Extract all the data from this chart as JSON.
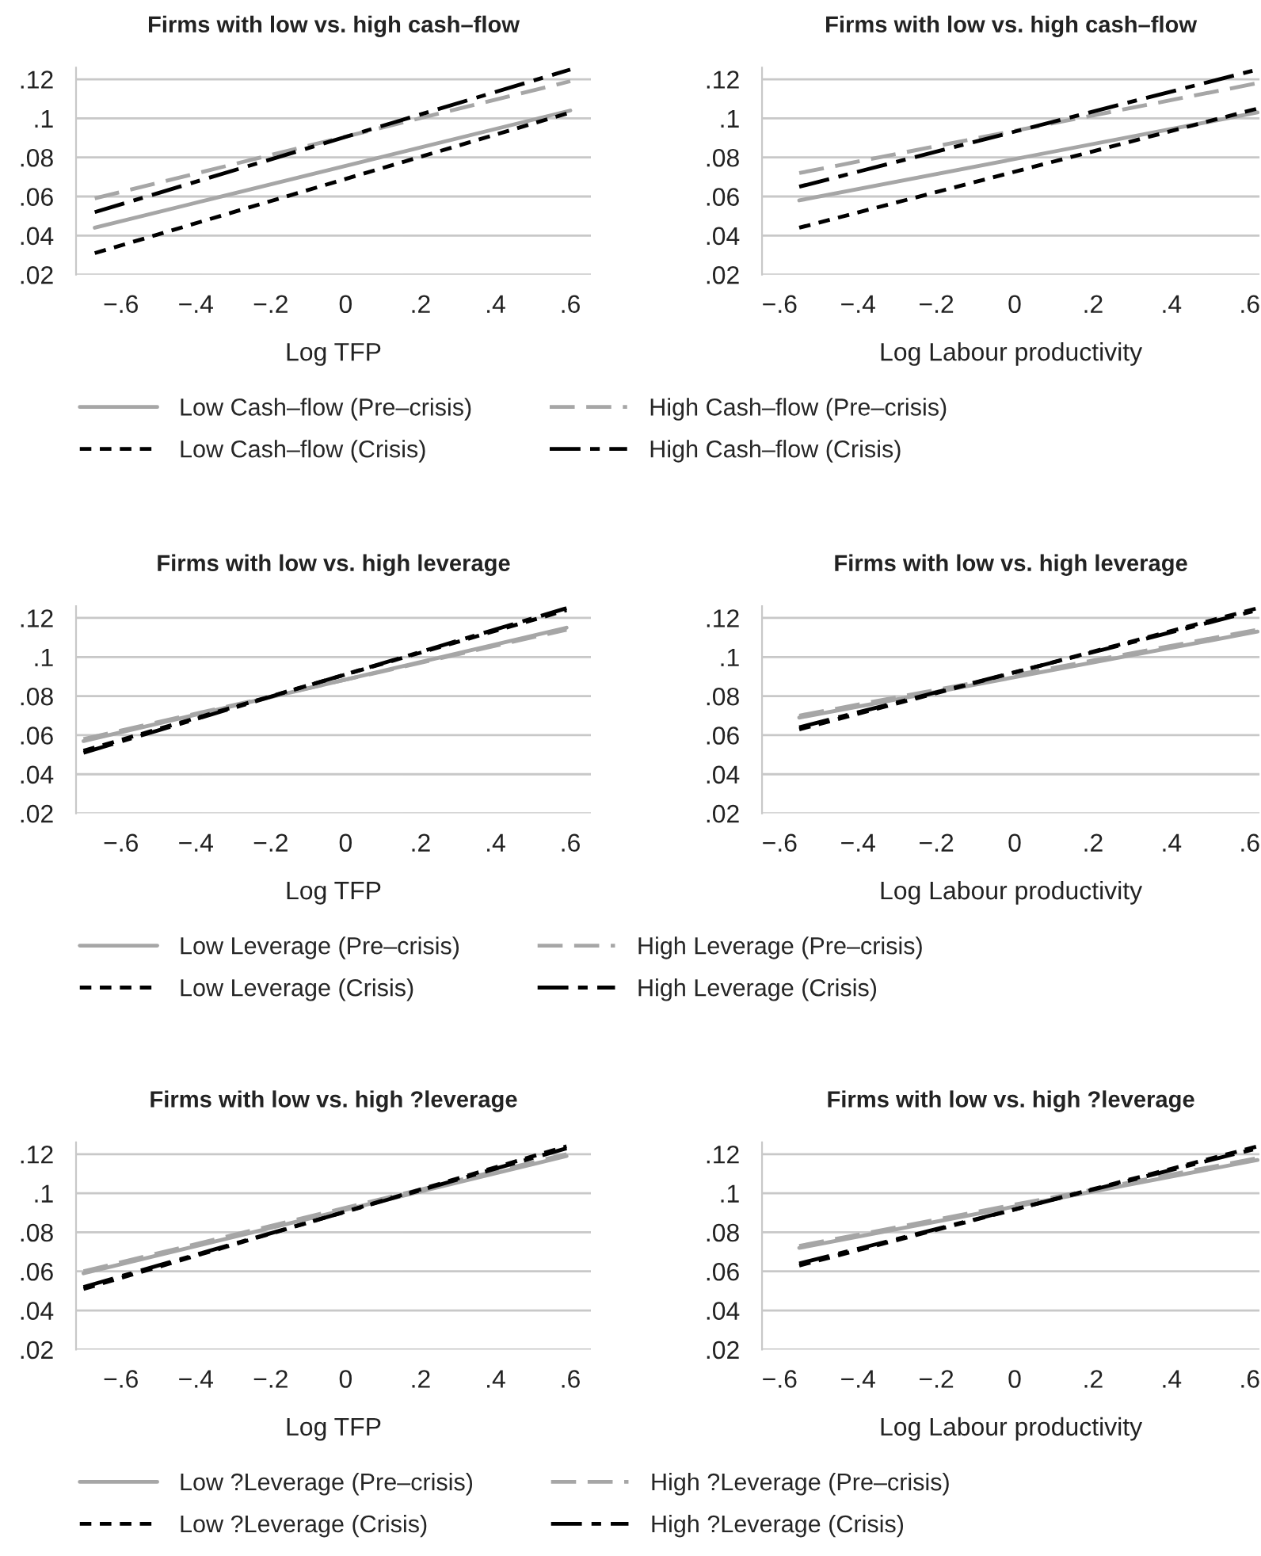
{
  "chart_data": [
    {
      "type": "line",
      "title": "Firms with low vs. high cash–flow",
      "xlabel": "Log TFP",
      "x": [
        -0.67,
        0.6
      ],
      "xlim": [
        -0.72,
        0.655
      ],
      "ylim": [
        0.02,
        0.126
      ],
      "xticks": [
        {
          "value": -0.6,
          "label": "−.6"
        },
        {
          "value": -0.4,
          "label": "−.4"
        },
        {
          "value": -0.2,
          "label": "−.2"
        },
        0,
        {
          "value": 0.2,
          "label": ".2"
        },
        {
          "value": 0.4,
          "label": ".4"
        },
        {
          "value": 0.6,
          "label": ".6"
        }
      ],
      "yticks": [
        {
          "value": 0.02,
          "label": ".02"
        },
        {
          "value": 0.04,
          "label": ".04"
        },
        {
          "value": 0.06,
          "label": ".06"
        },
        {
          "value": 0.08,
          "label": ".08"
        },
        {
          "value": 0.1,
          "label": ".1"
        },
        {
          "value": 0.12,
          "label": ".12"
        }
      ],
      "grid": "y",
      "legend": "bottom",
      "series": [
        {
          "name": "Low Cash–flow (Pre–crisis)",
          "color": "#a6a6a6",
          "line_style": "solid",
          "values": [
            0.044,
            0.104
          ]
        },
        {
          "name": "High Cash–flow (Pre–crisis)",
          "color": "#a6a6a6",
          "line_style": "dashed",
          "values": [
            0.059,
            0.119
          ]
        },
        {
          "name": "Low Cash–flow (Crisis)",
          "color": "#000000",
          "line_style": "dotted",
          "values": [
            0.031,
            0.103
          ]
        },
        {
          "name": "High Cash–flow (Crisis)",
          "color": "#000000",
          "line_style": "dashdot",
          "values": [
            0.052,
            0.125
          ]
        }
      ]
    },
    {
      "type": "line",
      "title": "Firms with low vs. high cash–flow",
      "xlabel": "Log Labour productivity",
      "x": [
        -0.55,
        0.62
      ],
      "xlim": [
        -0.645,
        0.625
      ],
      "ylim": [
        0.02,
        0.126
      ],
      "xticks": [
        {
          "value": -0.6,
          "label": "−.6"
        },
        {
          "value": -0.4,
          "label": "−.4"
        },
        {
          "value": -0.2,
          "label": "−.2"
        },
        0,
        {
          "value": 0.2,
          "label": ".2"
        },
        {
          "value": 0.4,
          "label": ".4"
        },
        {
          "value": 0.6,
          "label": ".6"
        }
      ],
      "yticks": [
        {
          "value": 0.02,
          "label": ".02"
        },
        {
          "value": 0.04,
          "label": ".04"
        },
        {
          "value": 0.06,
          "label": ".06"
        },
        {
          "value": 0.08,
          "label": ".08"
        },
        {
          "value": 0.1,
          "label": ".1"
        },
        {
          "value": 0.12,
          "label": ".12"
        }
      ],
      "grid": "y",
      "series": [
        {
          "color": "#a6a6a6",
          "line_style": "solid",
          "values": [
            0.058,
            0.103
          ]
        },
        {
          "color": "#a6a6a6",
          "line_style": "dashed",
          "values": [
            0.072,
            0.118
          ]
        },
        {
          "color": "#000000",
          "line_style": "dotted",
          "values": [
            0.044,
            0.105
          ]
        },
        {
          "color": "#000000",
          "line_style": "dashdot",
          "values": [
            0.065,
            0.125
          ]
        }
      ]
    },
    {
      "type": "line",
      "title": "Firms with low vs. high leverage",
      "xlabel": "Log TFP",
      "x": [
        -0.7,
        0.59
      ],
      "xlim": [
        -0.72,
        0.655
      ],
      "ylim": [
        0.02,
        0.126
      ],
      "xticks": [
        {
          "value": -0.6,
          "label": "−.6"
        },
        {
          "value": -0.4,
          "label": "−.4"
        },
        {
          "value": -0.2,
          "label": "−.2"
        },
        0,
        {
          "value": 0.2,
          "label": ".2"
        },
        {
          "value": 0.4,
          "label": ".4"
        },
        {
          "value": 0.6,
          "label": ".6"
        }
      ],
      "yticks": [
        {
          "value": 0.02,
          "label": ".02"
        },
        {
          "value": 0.04,
          "label": ".04"
        },
        {
          "value": 0.06,
          "label": ".06"
        },
        {
          "value": 0.08,
          "label": ".08"
        },
        {
          "value": 0.1,
          "label": ".1"
        },
        {
          "value": 0.12,
          "label": ".12"
        }
      ],
      "grid": "y",
      "legend": "bottom",
      "series": [
        {
          "name": "Low Leverage (Pre–crisis)",
          "color": "#a6a6a6",
          "line_style": "solid",
          "values": [
            0.057,
            0.115
          ]
        },
        {
          "name": "High Leverage (Pre–crisis)",
          "color": "#a6a6a6",
          "line_style": "dashed",
          "values": [
            0.058,
            0.114
          ]
        },
        {
          "name": "Low Leverage (Crisis)",
          "color": "#000000",
          "line_style": "dotted",
          "values": [
            0.052,
            0.124
          ]
        },
        {
          "name": "High Leverage (Crisis)",
          "color": "#000000",
          "line_style": "dashdot",
          "values": [
            0.051,
            0.125
          ]
        }
      ]
    },
    {
      "type": "line",
      "title": "Firms with low vs. high leverage",
      "xlabel": "Log Labour productivity",
      "x": [
        -0.55,
        0.62
      ],
      "xlim": [
        -0.645,
        0.625
      ],
      "ylim": [
        0.02,
        0.126
      ],
      "xticks": [
        {
          "value": -0.6,
          "label": "−.6"
        },
        {
          "value": -0.4,
          "label": "−.4"
        },
        {
          "value": -0.2,
          "label": "−.2"
        },
        0,
        {
          "value": 0.2,
          "label": ".2"
        },
        {
          "value": 0.4,
          "label": ".4"
        },
        {
          "value": 0.6,
          "label": ".6"
        }
      ],
      "yticks": [
        {
          "value": 0.02,
          "label": ".02"
        },
        {
          "value": 0.04,
          "label": ".04"
        },
        {
          "value": 0.06,
          "label": ".06"
        },
        {
          "value": 0.08,
          "label": ".08"
        },
        {
          "value": 0.1,
          "label": ".1"
        },
        {
          "value": 0.12,
          "label": ".12"
        }
      ],
      "grid": "y",
      "series": [
        {
          "color": "#a6a6a6",
          "line_style": "solid",
          "values": [
            0.069,
            0.113
          ]
        },
        {
          "color": "#a6a6a6",
          "line_style": "dashed",
          "values": [
            0.07,
            0.114
          ]
        },
        {
          "color": "#000000",
          "line_style": "dotted",
          "values": [
            0.063,
            0.125
          ]
        },
        {
          "color": "#000000",
          "line_style": "dashdot",
          "values": [
            0.064,
            0.124
          ]
        }
      ]
    },
    {
      "type": "line",
      "title": "Firms with low vs. high ?leverage",
      "xlabel": "Log TFP",
      "x": [
        -0.7,
        0.59
      ],
      "xlim": [
        -0.72,
        0.655
      ],
      "ylim": [
        0.02,
        0.126
      ],
      "xticks": [
        {
          "value": -0.6,
          "label": "−.6"
        },
        {
          "value": -0.4,
          "label": "−.4"
        },
        {
          "value": -0.2,
          "label": "−.2"
        },
        0,
        {
          "value": 0.2,
          "label": ".2"
        },
        {
          "value": 0.4,
          "label": ".4"
        },
        {
          "value": 0.6,
          "label": ".6"
        }
      ],
      "yticks": [
        {
          "value": 0.02,
          "label": ".02"
        },
        {
          "value": 0.04,
          "label": ".04"
        },
        {
          "value": 0.06,
          "label": ".06"
        },
        {
          "value": 0.08,
          "label": ".08"
        },
        {
          "value": 0.1,
          "label": ".1"
        },
        {
          "value": 0.12,
          "label": ".12"
        }
      ],
      "grid": "y",
      "legend": "bottom",
      "series": [
        {
          "name": "Low ?Leverage (Pre–crisis)",
          "color": "#a6a6a6",
          "line_style": "solid",
          "values": [
            0.059,
            0.119
          ]
        },
        {
          "name": "High ?Leverage (Pre–crisis)",
          "color": "#a6a6a6",
          "line_style": "dashed",
          "values": [
            0.06,
            0.12
          ]
        },
        {
          "name": "Low ?Leverage (Crisis)",
          "color": "#000000",
          "line_style": "dotted",
          "values": [
            0.051,
            0.124
          ]
        },
        {
          "name": "High ?Leverage (Crisis)",
          "color": "#000000",
          "line_style": "dashdot",
          "values": [
            0.052,
            0.123
          ]
        }
      ]
    },
    {
      "type": "line",
      "title": "Firms with low vs. high ?leverage",
      "xlabel": "Log Labour productivity",
      "x": [
        -0.55,
        0.62
      ],
      "xlim": [
        -0.645,
        0.625
      ],
      "ylim": [
        0.02,
        0.126
      ],
      "xticks": [
        {
          "value": -0.6,
          "label": "−.6"
        },
        {
          "value": -0.4,
          "label": "−.4"
        },
        {
          "value": -0.2,
          "label": "−.2"
        },
        0,
        {
          "value": 0.2,
          "label": ".2"
        },
        {
          "value": 0.4,
          "label": ".4"
        },
        {
          "value": 0.6,
          "label": ".6"
        }
      ],
      "yticks": [
        {
          "value": 0.02,
          "label": ".02"
        },
        {
          "value": 0.04,
          "label": ".04"
        },
        {
          "value": 0.06,
          "label": ".06"
        },
        {
          "value": 0.08,
          "label": ".08"
        },
        {
          "value": 0.1,
          "label": ".1"
        },
        {
          "value": 0.12,
          "label": ".12"
        }
      ],
      "grid": "y",
      "series": [
        {
          "color": "#a6a6a6",
          "line_style": "solid",
          "values": [
            0.072,
            0.117
          ]
        },
        {
          "color": "#a6a6a6",
          "line_style": "dashed",
          "values": [
            0.073,
            0.118
          ]
        },
        {
          "color": "#000000",
          "line_style": "dotted",
          "values": [
            0.063,
            0.124
          ]
        },
        {
          "color": "#000000",
          "line_style": "dashdot",
          "values": [
            0.064,
            0.123
          ]
        }
      ]
    }
  ]
}
